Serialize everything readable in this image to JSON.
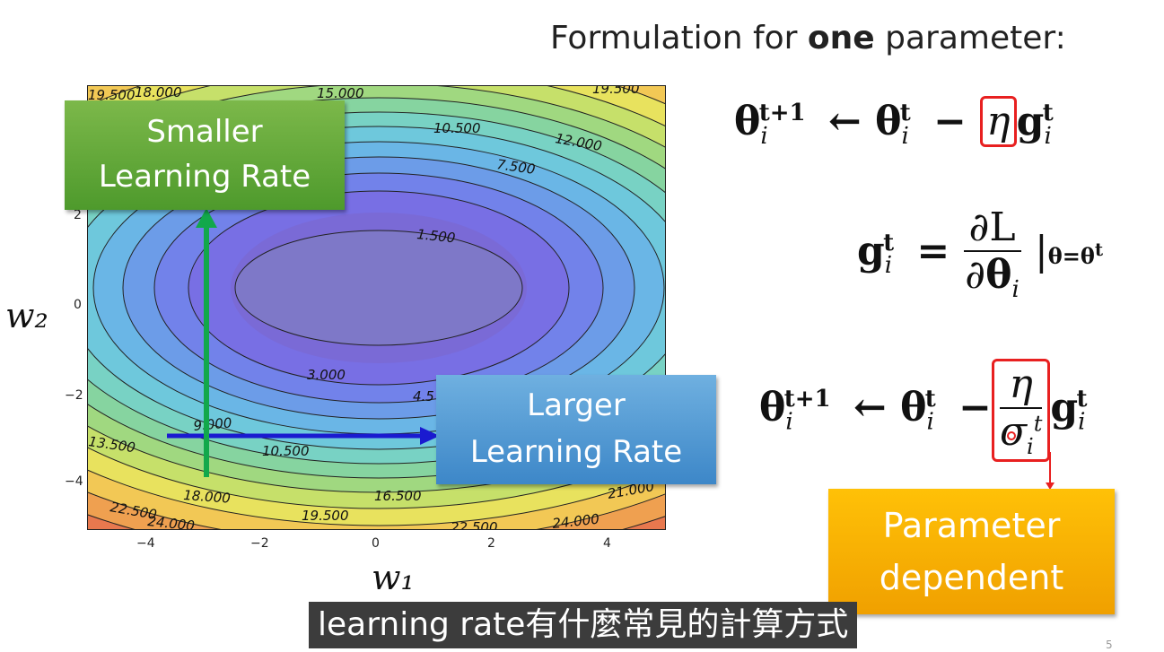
{
  "title": {
    "prefix": "Formulation for ",
    "bold": "one",
    "suffix": " parameter:"
  },
  "plot": {
    "xlabel": "w₁",
    "ylabel": "w₂",
    "xticks": [
      "−4",
      "−2",
      "0",
      "2",
      "4"
    ],
    "yticks": [
      "2",
      "0",
      "−2",
      "−4"
    ],
    "contour_labels": [
      "19.500",
      "18.000",
      "15.000",
      "10.500",
      "12.000",
      "7.500",
      "1.500",
      "3.000",
      "4.5",
      "9.000",
      "13.500",
      "10.500",
      "18.000",
      "16.500",
      "21.000",
      "22.500",
      "24.000",
      "19.500",
      "22.500",
      "24.000",
      "19.500"
    ]
  },
  "callouts": {
    "smaller_line1": "Smaller",
    "smaller_line2": "Learning Rate",
    "larger_line1": "Larger",
    "larger_line2": "Learning Rate",
    "param_line1": "Parameter",
    "param_line2": "dependent"
  },
  "colors": {
    "green_arrow": "#12a84b",
    "blue_arrow": "#1a1ad0",
    "highlight_box": "#e82020"
  },
  "subtitle": "learning rate有什麼常見的計算方式",
  "page_number": "5"
}
